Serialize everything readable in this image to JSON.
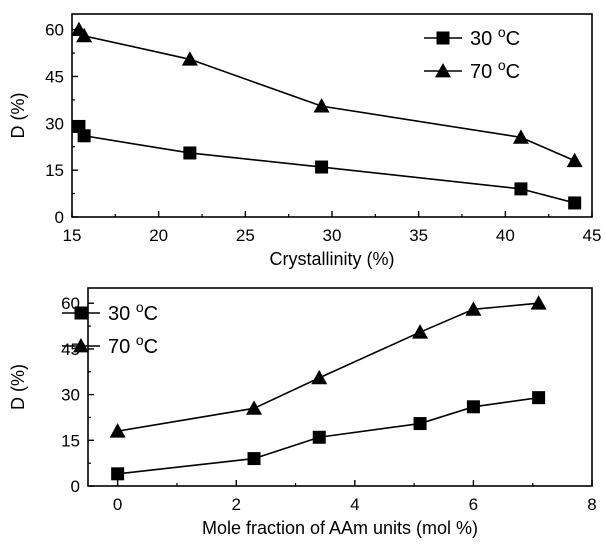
{
  "chart_data": [
    {
      "type": "line",
      "xlabel": "Crystallinity  (%)",
      "ylabel": "D (%)",
      "xlim": [
        15,
        45
      ],
      "ylim": [
        0,
        65
      ],
      "xticks": [
        "15",
        "20",
        "25",
        "30",
        "35",
        "40",
        "45"
      ],
      "yticks": [
        "0",
        "15",
        "30",
        "45",
        "60"
      ],
      "legend_position": "top-right",
      "series": [
        {
          "name": "30 °C",
          "marker": "square",
          "x": [
            15.4,
            15.7,
            21.8,
            29.4,
            40.9,
            44.0
          ],
          "y": [
            29,
            26,
            20.5,
            16,
            9,
            4.5
          ]
        },
        {
          "name": "70 °C",
          "marker": "triangle",
          "x": [
            15.4,
            15.7,
            21.8,
            29.4,
            40.9,
            44.0
          ],
          "y": [
            60,
            58,
            50.5,
            35.5,
            25.5,
            18
          ]
        }
      ]
    },
    {
      "type": "line",
      "xlabel": "Mole fraction of AAm units (mol %)",
      "ylabel": "D (%)",
      "xlim": [
        -0.5,
        8
      ],
      "ylim": [
        0,
        65
      ],
      "xticks": [
        "0",
        "2",
        "4",
        "6",
        "8"
      ],
      "yticks": [
        "0",
        "15",
        "30",
        "45",
        "60"
      ],
      "legend_position": "top-left",
      "series": [
        {
          "name": "30 °C",
          "marker": "square",
          "x": [
            0,
            2.3,
            3.4,
            5.1,
            6.0,
            7.1
          ],
          "y": [
            4,
            9,
            16,
            20.5,
            26,
            29
          ]
        },
        {
          "name": "70 °C",
          "marker": "triangle",
          "x": [
            0,
            2.3,
            3.4,
            5.1,
            6.0,
            7.1
          ],
          "y": [
            18,
            25.5,
            35.5,
            50.5,
            58,
            60
          ]
        }
      ]
    }
  ]
}
